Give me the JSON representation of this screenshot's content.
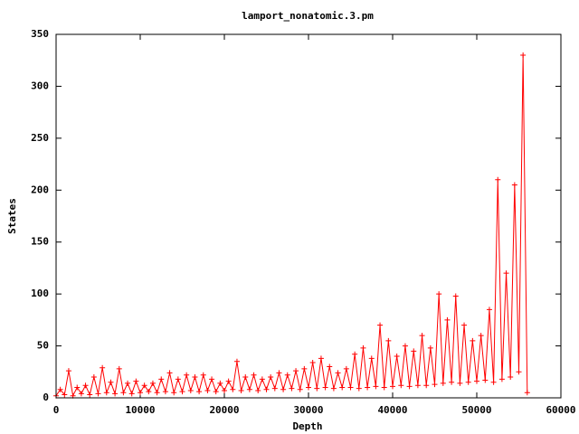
{
  "chart_data": {
    "type": "line",
    "title": "lamport_nonatomic.3.pm",
    "x_label": "Depth",
    "y_label": "States",
    "color": "#ff0000",
    "x": [
      0,
      500,
      1000,
      1500,
      2000,
      2500,
      3000,
      3500,
      4000,
      4500,
      5000,
      5500,
      6000,
      6500,
      7000,
      7500,
      8000,
      8500,
      9000,
      9500,
      10000,
      10500,
      11000,
      11500,
      12000,
      12500,
      13000,
      13500,
      14000,
      14500,
      15000,
      15500,
      16000,
      16500,
      17000,
      17500,
      18000,
      18500,
      19000,
      19500,
      20000,
      20500,
      21000,
      21500,
      22000,
      22500,
      23000,
      23500,
      24000,
      24500,
      25000,
      25500,
      26000,
      26500,
      27000,
      27500,
      28000,
      28500,
      29000,
      29500,
      30000,
      30500,
      31000,
      31500,
      32000,
      32500,
      33000,
      33500,
      34000,
      34500,
      35000,
      35500,
      36000,
      36500,
      37000,
      37500,
      38000,
      38500,
      39000,
      39500,
      40000,
      40500,
      41000,
      41500,
      42000,
      42500,
      43000,
      43500,
      44000,
      44500,
      45000,
      45500,
      46000,
      46500,
      47000,
      47500,
      48000,
      48500,
      49000,
      49500,
      50000,
      50500,
      51000,
      51500,
      52000,
      52500,
      53000,
      53500,
      54000,
      54500,
      55000,
      55500,
      56000
    ],
    "values": [
      2,
      8,
      3,
      26,
      2,
      10,
      4,
      12,
      3,
      20,
      4,
      29,
      5,
      15,
      4,
      28,
      5,
      14,
      4,
      16,
      5,
      12,
      6,
      14,
      5,
      18,
      6,
      24,
      5,
      18,
      6,
      22,
      7,
      20,
      6,
      22,
      7,
      18,
      6,
      14,
      7,
      16,
      8,
      35,
      7,
      20,
      8,
      22,
      7,
      18,
      8,
      20,
      9,
      24,
      8,
      22,
      9,
      26,
      8,
      28,
      10,
      34,
      9,
      38,
      10,
      30,
      9,
      24,
      10,
      28,
      10,
      42,
      9,
      48,
      10,
      38,
      11,
      70,
      10,
      55,
      11,
      40,
      12,
      50,
      11,
      45,
      12,
      60,
      12,
      48,
      13,
      100,
      14,
      75,
      15,
      98,
      14,
      70,
      15,
      55,
      16,
      60,
      17,
      85,
      15,
      210,
      18,
      120,
      20,
      205,
      25,
      330,
      5
    ],
    "xlim": [
      0,
      60000
    ],
    "xticks": [
      0,
      10000,
      20000,
      30000,
      40000,
      50000,
      60000
    ],
    "ylim": [
      0,
      350
    ],
    "yticks": [
      0,
      50,
      100,
      150,
      200,
      250,
      300,
      350
    ]
  }
}
